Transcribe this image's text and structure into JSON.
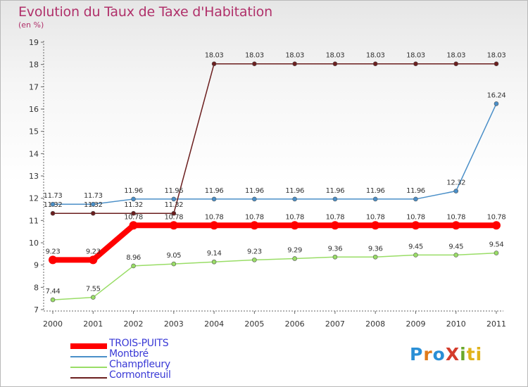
{
  "title": "Evolution du Taux de Taxe d'Habitation",
  "subtitle": "(en %)",
  "logo_text": "ProXiti",
  "chart_data": {
    "type": "line",
    "title": "Evolution du Taux de Taxe d'Habitation",
    "ylabel": "(en %)",
    "xlabel": "",
    "ylim": [
      7,
      19
    ],
    "grid": false,
    "legend_placement": "bottom-left",
    "categories": [
      "2000",
      "2001",
      "2002",
      "2003",
      "2004",
      "2005",
      "2006",
      "2007",
      "2008",
      "2009",
      "2010",
      "2011"
    ],
    "y_ticks": [
      "7",
      "8",
      "9",
      "10",
      "11",
      "12",
      "13",
      "14",
      "15",
      "16",
      "17",
      "18",
      "19"
    ],
    "series": [
      {
        "name": "TROIS-PUITS",
        "color": "#ff0000",
        "values": [
          9.23,
          9.23,
          10.78,
          10.78,
          10.78,
          10.78,
          10.78,
          10.78,
          10.78,
          10.78,
          10.78,
          10.78
        ],
        "labels": [
          "9.23",
          "9.23",
          "10.78",
          "10.78",
          "10.78",
          "10.78",
          "10.78",
          "10.78",
          "10.78",
          "10.78",
          "10.78",
          "10.78"
        ]
      },
      {
        "name": "Montbré",
        "color": "#4a8fc8",
        "values": [
          11.73,
          11.73,
          11.96,
          11.96,
          11.96,
          11.96,
          11.96,
          11.96,
          11.96,
          11.96,
          12.32,
          16.24
        ],
        "labels": [
          "11.73",
          "11.73",
          "11.96",
          "11.96",
          "11.96",
          "11.96",
          "11.96",
          "11.96",
          "11.96",
          "11.96",
          "12.32",
          "16.24"
        ]
      },
      {
        "name": "Champfleury",
        "color": "#99dd66",
        "values": [
          7.44,
          7.55,
          8.96,
          9.05,
          9.14,
          9.23,
          9.29,
          9.36,
          9.36,
          9.45,
          9.45,
          9.54
        ],
        "labels": [
          "7.44",
          "7.55",
          "8.96",
          "9.05",
          "9.14",
          "9.23",
          "9.29",
          "9.36",
          "9.36",
          "9.45",
          "9.45",
          "9.54"
        ]
      },
      {
        "name": "Cormontreuil",
        "color": "#6b1e1e",
        "values": [
          11.32,
          11.32,
          11.32,
          11.32,
          18.03,
          18.03,
          18.03,
          18.03,
          18.03,
          18.03,
          18.03,
          18.03
        ],
        "labels": [
          "11.32",
          "11.32",
          "11.32",
          "11.32",
          "18.03",
          "18.03",
          "18.03",
          "18.03",
          "18.03",
          "18.03",
          "18.03",
          "18.03"
        ]
      }
    ]
  }
}
